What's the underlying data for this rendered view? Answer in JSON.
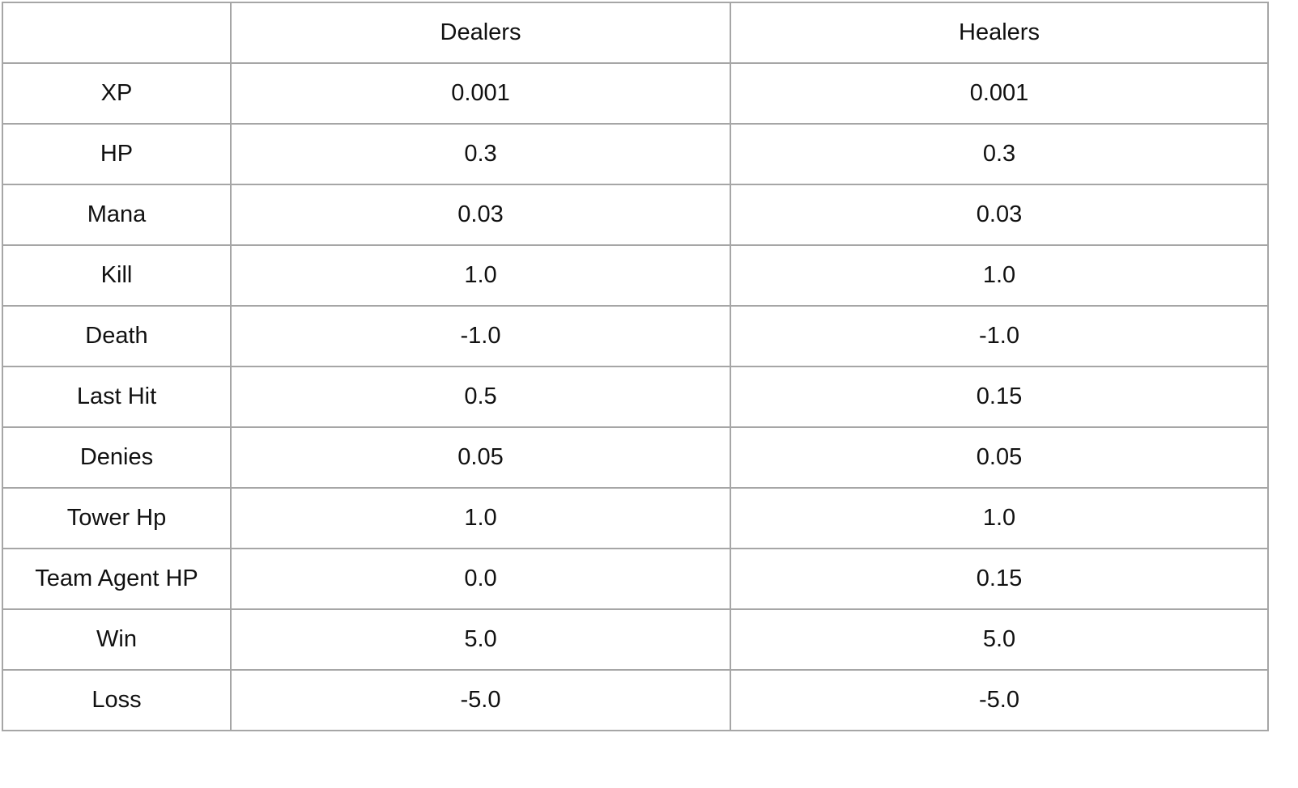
{
  "table": {
    "header": [
      "",
      "Dealers",
      "Healers"
    ],
    "rows": [
      [
        "XP",
        "0.001",
        "0.001"
      ],
      [
        "HP",
        "0.3",
        "0.3"
      ],
      [
        "Mana",
        "0.03",
        "0.03"
      ],
      [
        "Kill",
        "1.0",
        "1.0"
      ],
      [
        "Death",
        "-1.0",
        "-1.0"
      ],
      [
        "Last Hit",
        "0.5",
        "0.15"
      ],
      [
        "Denies",
        "0.05",
        "0.05"
      ],
      [
        "Tower Hp",
        "1.0",
        "1.0"
      ],
      [
        "Team Agent HP",
        "0.0",
        "0.15"
      ],
      [
        "Win",
        "5.0",
        "5.0"
      ],
      [
        "Loss",
        "-5.0",
        "-5.0"
      ]
    ]
  },
  "colors": {
    "border": "#a6a6a6",
    "text": "#111111",
    "background": "#ffffff"
  }
}
